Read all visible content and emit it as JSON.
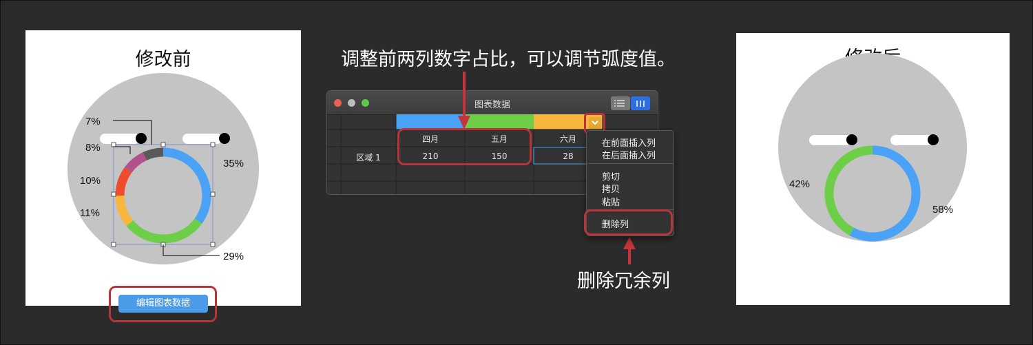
{
  "before": {
    "title": "修改前",
    "labels": {
      "pct7": "7%",
      "pct8": "8%",
      "pct10": "10%",
      "pct11": "11%",
      "pct35": "35%",
      "pct29": "29%"
    },
    "edit_button": "编辑图表数据"
  },
  "after": {
    "title": "修改后",
    "labels": {
      "pct42": "42%",
      "pct58": "58%"
    }
  },
  "callouts": {
    "top": "调整前两列数字占比，可以调节弧度值。",
    "bottom": "删除冗余列"
  },
  "window": {
    "title": "图表数据",
    "columns": [
      "四月",
      "五月",
      "六月"
    ],
    "row_label": "区域 1",
    "row_values": [
      "210",
      "150",
      "28"
    ],
    "column_colors": [
      "#4aa2f7",
      "#6dcf48",
      "#f6b73c"
    ]
  },
  "context_menu": {
    "insert_before": "在前面插入列",
    "insert_after": "在后面插入列",
    "cut": "剪切",
    "copy": "拷贝",
    "paste": "粘贴",
    "delete_column": "删除列"
  },
  "chart_data": [
    {
      "type": "pie",
      "title": "修改前",
      "labels": [
        "35%",
        "29%",
        "11%",
        "10%",
        "8%",
        "7%"
      ],
      "values": [
        35,
        29,
        11,
        10,
        8,
        7
      ],
      "colors": [
        "#4aa2f7",
        "#6dcf48",
        "#f6b73c",
        "#ef4b2c",
        "#b3528a",
        "#5a5a5a"
      ]
    },
    {
      "type": "pie",
      "title": "修改后",
      "labels": [
        "58%",
        "42%"
      ],
      "values": [
        58,
        42
      ],
      "colors": [
        "#4aa2f7",
        "#6dcf48"
      ]
    }
  ]
}
